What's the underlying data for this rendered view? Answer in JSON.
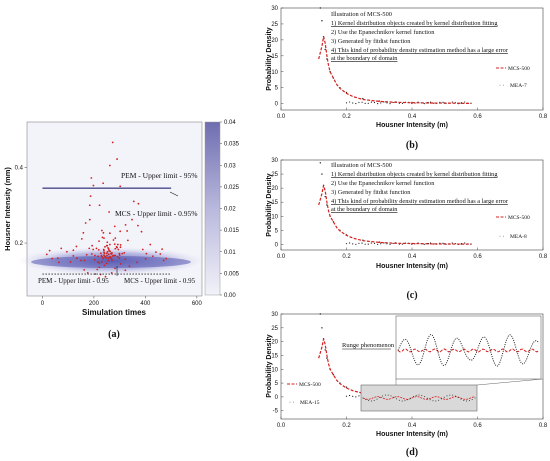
{
  "chart_data": [
    {
      "panel": "(a)",
      "type": "heatmap",
      "xlabel": "Simulation times",
      "ylabel": "Housner Intensity (mm)",
      "xticks": [
        "0",
        "200",
        "400",
        "600"
      ],
      "yticks": [
        "0.2",
        "0.4"
      ],
      "colorbar_ticks": [
        "0.04",
        "0.035",
        "0.03",
        "0.025",
        "0.02",
        "0.015",
        "0.01",
        "0.005",
        "0.00"
      ],
      "xlim": [
        -60,
        620
      ],
      "ylim": [
        0.06,
        0.52
      ],
      "annotations": [
        "PEM - Upper limit - 95%",
        "MCS - Upper limit - 0.95%",
        "PEM - Upper limit - 0.95",
        "MCS - Upper limit - 0.95"
      ],
      "pem_upper_limit": 0.345,
      "mcs_upper_limit": 0.118,
      "scatter_points": [
        [
          205,
          0.118
        ],
        [
          241,
          0.141
        ],
        [
          299,
          0.16
        ],
        [
          304,
          0.145
        ],
        [
          257,
          0.17
        ],
        [
          251,
          0.167
        ],
        [
          282,
          0.133
        ],
        [
          318,
          0.174
        ],
        [
          368,
          0.149
        ],
        [
          303,
          0.189
        ],
        [
          338,
          0.139
        ],
        [
          176,
          0.121
        ],
        [
          237,
          0.227
        ],
        [
          385,
          0.23
        ],
        [
          231,
          0.233
        ],
        [
          269,
          0.121
        ],
        [
          235,
          0.16
        ],
        [
          323,
          0.248
        ],
        [
          322,
          0.128
        ],
        [
          153,
          0.211
        ],
        [
          245,
          0.111
        ],
        [
          164,
          0.154
        ],
        [
          221,
          0.136
        ],
        [
          262,
          0.226
        ],
        [
          302,
          0.231
        ],
        [
          216,
          0.165
        ],
        [
          132,
          0.191
        ],
        [
          162,
          0.129
        ],
        [
          120,
          0.166
        ],
        [
          250,
          0.146
        ],
        [
          150,
          0.154
        ],
        [
          300,
          0.168
        ],
        [
          220,
          0.108
        ],
        [
          263,
          0.178
        ],
        [
          270,
          0.155
        ],
        [
          304,
          0.195
        ],
        [
          252,
          0.202
        ],
        [
          192,
          0.171
        ],
        [
          221,
          0.147
        ],
        [
          239,
          0.176
        ],
        [
          259,
          0.18
        ],
        [
          263,
          0.164
        ],
        [
          213,
          0.13
        ],
        [
          226,
          0.117
        ],
        [
          322,
          0.157
        ],
        [
          288,
          0.19
        ],
        [
          239,
          0.213
        ],
        [
          295,
          0.183
        ],
        [
          197,
          0.183
        ],
        [
          257,
          0.16
        ],
        [
          250,
          0.173
        ],
        [
          172,
          0.169
        ],
        [
          276,
          0.208
        ],
        [
          220,
          0.205
        ],
        [
          268,
          0.16
        ],
        [
          253,
          0.177
        ],
        [
          193,
          0.193
        ],
        [
          229,
          0.167
        ],
        [
          290,
          0.188
        ],
        [
          292,
          0.164
        ],
        [
          283,
          0.213
        ],
        [
          215,
          0.15
        ],
        [
          250,
          0.193
        ],
        [
          239,
          0.168
        ],
        [
          332,
          0.207
        ],
        [
          273,
          0.166
        ],
        [
          227,
          0.173
        ],
        [
          255,
          0.187
        ],
        [
          262,
          0.196
        ],
        [
          256,
          0.154
        ],
        [
          239,
          0.181
        ],
        [
          270,
          0.174
        ],
        [
          210,
          0.186
        ],
        [
          283,
          0.167
        ],
        [
          299,
          0.172
        ],
        [
          233,
          0.215
        ],
        [
          269,
          0.171
        ],
        [
          244,
          0.162
        ],
        [
          310,
          0.172
        ],
        [
          238,
          0.183
        ],
        [
          204,
          0.167
        ],
        [
          248,
          0.161
        ],
        [
          283,
          0.185
        ],
        [
          203,
          0.156
        ],
        [
          258,
          0.17
        ],
        [
          281,
          0.197
        ],
        [
          236,
          0.159
        ],
        [
          293,
          0.196
        ],
        [
          231,
          0.15
        ],
        [
          266,
          0.172
        ],
        [
          182,
          0.186
        ],
        [
          252,
          0.193
        ],
        [
          243,
          0.165
        ],
        [
          241,
          0.173
        ],
        [
          263,
          0.162
        ],
        [
          219,
          0.182
        ],
        [
          243,
          0.19
        ],
        [
          258,
          0.184
        ],
        [
          231,
          0.164
        ],
        [
          278,
          0.167
        ],
        [
          38,
          0.159
        ],
        [
          95,
          0.177
        ],
        [
          120,
          0.181
        ],
        [
          60,
          0.16
        ],
        [
          64,
          0.149
        ],
        [
          134,
          0.16
        ],
        [
          28,
          0.18
        ],
        [
          109,
          0.15
        ],
        [
          73,
          0.186
        ],
        [
          17,
          0.17
        ],
        [
          419,
          0.196
        ],
        [
          465,
          0.184
        ],
        [
          401,
          0.158
        ],
        [
          441,
          0.176
        ],
        [
          471,
          0.154
        ],
        [
          429,
          0.165
        ],
        [
          404,
          0.172
        ],
        [
          481,
          0.159
        ],
        [
          390,
          0.183
        ],
        [
          458,
          0.171
        ],
        [
          168,
          0.253
        ],
        [
          184,
          0.3
        ],
        [
          198,
          0.352
        ],
        [
          262,
          0.405
        ],
        [
          290,
          0.422
        ],
        [
          273,
          0.466
        ],
        [
          236,
          0.358
        ],
        [
          184,
          0.262
        ],
        [
          159,
          0.227
        ],
        [
          355,
          0.31
        ],
        [
          373,
          0.304
        ],
        [
          190,
          0.372
        ],
        [
          259,
          0.282
        ],
        [
          348,
          0.262
        ],
        [
          302,
          0.35
        ],
        [
          187,
          0.324
        ],
        [
          281,
          0.244
        ],
        [
          371,
          0.246
        ],
        [
          222,
          0.3
        ],
        [
          329,
          0.232
        ]
      ]
    },
    {
      "panel": "(b)",
      "type": "line",
      "xlabel": "Housner Intensity (m)",
      "ylabel": "Probability Density",
      "xlim": [
        0,
        0.8
      ],
      "ylim": [
        -2,
        30
      ],
      "xticks": [
        "0.0",
        "0.2",
        "0.4",
        "0.6",
        "0.8"
      ],
      "yticks": [
        "0",
        "5",
        "10",
        "15",
        "20",
        "25",
        "30"
      ],
      "annotation_lines": [
        "Illustration of MCS-500",
        "1) Kernel distribution objects created by kernel distribution fitting",
        "2) Use the Epanechnikov kernel function",
        "3) Generated by fitdist function",
        "4) This kind of probability density estimation method has a large error",
        "at the boundary of domain"
      ],
      "series": [
        {
          "name": "MCS-500",
          "x": [
            0.115,
            0.12,
            0.125,
            0.13,
            0.135,
            0.14,
            0.145,
            0.15,
            0.16,
            0.17,
            0.18,
            0.2,
            0.22,
            0.25,
            0.3,
            0.35,
            0.4,
            0.45,
            0.5,
            0.55,
            0.58
          ],
          "y": [
            14,
            16,
            18,
            21,
            19,
            15,
            12,
            10,
            8,
            6,
            4.8,
            3.2,
            2.2,
            1.3,
            0.7,
            0.4,
            0.3,
            0.2,
            0.15,
            0.1,
            0.05
          ]
        },
        {
          "name": "MEA-7",
          "x": [
            0.12,
            0.125,
            0.13,
            0.135,
            0.14,
            0.15,
            0.16,
            0.18,
            0.2,
            0.25,
            0.3,
            0.35,
            0.4,
            0.45,
            0.5,
            0.55,
            0.58
          ],
          "y": [
            30,
            26,
            21,
            17,
            14,
            10,
            8,
            5,
            3.5,
            1.6,
            0.8,
            0.5,
            0.35,
            0.25,
            0.2,
            0.15,
            0.1
          ]
        }
      ]
    },
    {
      "panel": "(c)",
      "type": "line",
      "xlabel": "Housner Intensity (m)",
      "ylabel": "Probability Density",
      "xlim": [
        0,
        0.8
      ],
      "ylim": [
        -2,
        30
      ],
      "xticks": [
        "0.0",
        "0.2",
        "0.4",
        "0.6",
        "0.8"
      ],
      "yticks": [
        "0",
        "5",
        "10",
        "15",
        "20",
        "25",
        "30"
      ],
      "annotation_lines": [
        "Illustration of MCS-500",
        "1) Kernel distribution objects created by kernel distribution fitting",
        "2) Use the Epanechnikov kernel function",
        "3) Generated by fitdist function",
        "4) This kind of probability density estimation method has a large error",
        "at the boundary of domain"
      ],
      "series": [
        {
          "name": "MCS-500",
          "x": [
            0.115,
            0.12,
            0.125,
            0.13,
            0.135,
            0.14,
            0.145,
            0.15,
            0.16,
            0.17,
            0.18,
            0.2,
            0.22,
            0.25,
            0.3,
            0.35,
            0.4,
            0.45,
            0.5,
            0.55,
            0.58
          ],
          "y": [
            14,
            16,
            18,
            21,
            19,
            15,
            12,
            10,
            8,
            6,
            4.8,
            3.2,
            2.2,
            1.3,
            0.7,
            0.4,
            0.3,
            0.2,
            0.15,
            0.1,
            0.05
          ]
        },
        {
          "name": "MEA-8",
          "x": [
            0.12,
            0.125,
            0.13,
            0.135,
            0.14,
            0.15,
            0.16,
            0.18,
            0.2,
            0.25,
            0.3,
            0.35,
            0.4,
            0.45,
            0.5,
            0.55,
            0.58
          ],
          "y": [
            29,
            25,
            21,
            17,
            14,
            10,
            8,
            5,
            3.4,
            1.5,
            0.8,
            0.5,
            0.3,
            0.25,
            0.2,
            0.15,
            0.1
          ]
        }
      ]
    },
    {
      "panel": "(d)",
      "type": "line",
      "xlabel": "Housner Intensity (m)",
      "ylabel": "Probability Density",
      "xlim": [
        0,
        0.8
      ],
      "ylim": [
        -8,
        30
      ],
      "xticks": [
        "0.0",
        "0.2",
        "0.4",
        "0.6",
        "0.8"
      ],
      "yticks": [
        "-5",
        "0",
        "5",
        "10",
        "15",
        "20",
        "25",
        "30"
      ],
      "annotation": "Runge phenomenon",
      "series": [
        {
          "name": "MCS-500",
          "x": [
            0.115,
            0.12,
            0.125,
            0.13,
            0.135,
            0.14,
            0.145,
            0.15,
            0.16,
            0.17,
            0.18,
            0.2,
            0.22,
            0.25,
            0.3,
            0.35,
            0.4,
            0.45,
            0.5,
            0.55,
            0.58
          ],
          "y": [
            14,
            16,
            18,
            21,
            19,
            15,
            12,
            10,
            8,
            6,
            4.8,
            3.2,
            2.2,
            1.3,
            0.7,
            0.4,
            0.3,
            0.2,
            0.15,
            0.1,
            0.05
          ]
        },
        {
          "name": "MEA-15",
          "x": [
            0.12,
            0.125,
            0.13,
            0.135,
            0.14,
            0.15,
            0.16,
            0.18,
            0.2,
            0.25,
            0.3,
            0.35,
            0.4,
            0.45,
            0.5,
            0.55,
            0.58
          ],
          "y": [
            30,
            25,
            21,
            17,
            14,
            10,
            8,
            5,
            3.5,
            1.7,
            0.9,
            0.5,
            0.4,
            0.3,
            0.25,
            0.2,
            0.15
          ]
        }
      ]
    }
  ],
  "labels": {
    "a": "(a)",
    "b": "(b)",
    "c": "(c)",
    "d": "(d)"
  },
  "colors": {
    "mcs": "#d42020",
    "mea": "#222222",
    "pem_line": "#4a4a8a",
    "colorbar_top": "#6f6db0",
    "colorbar_bottom": "#efeff7",
    "band": "#7778c0",
    "inset_bg": "#d9d9d9"
  }
}
